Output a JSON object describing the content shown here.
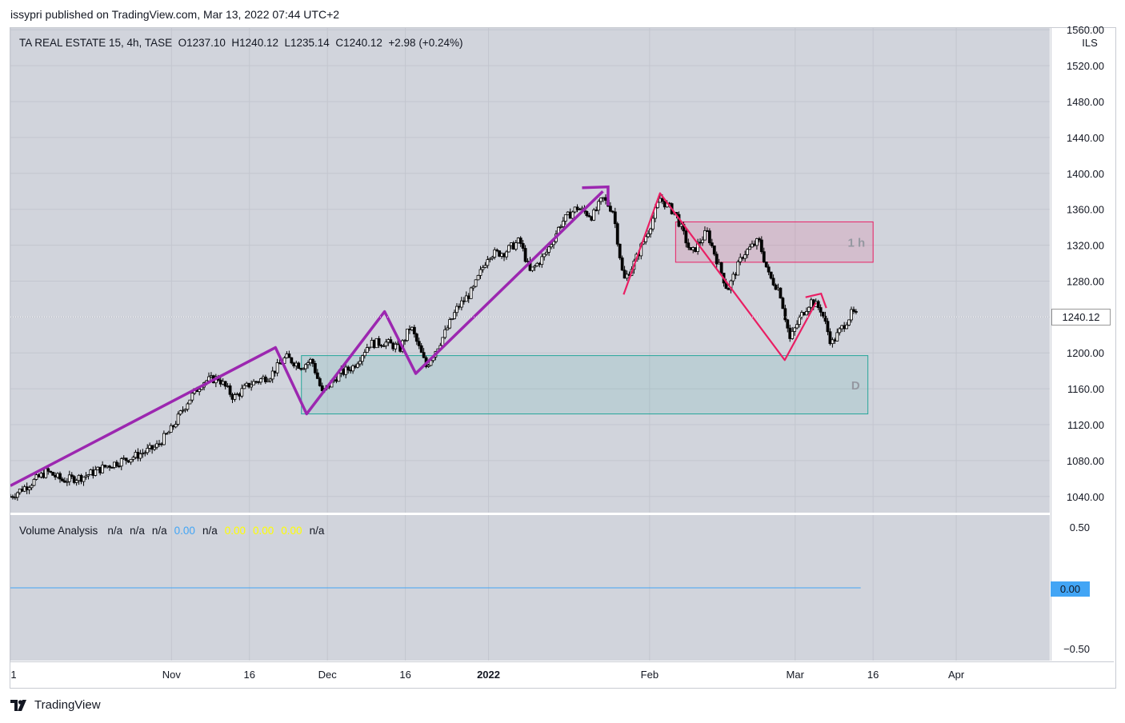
{
  "header": {
    "published": "issypri published on TradingView.com, Mar 13, 2022 07:44 UTC+2"
  },
  "legend": {
    "symbol": "TA REAL ESTATE 15, 4h, TASE",
    "open": "O1237.10",
    "high": "H1240.12",
    "low": "L1235.14",
    "close": "C1240.12",
    "change": "+2.98 (+0.24%)"
  },
  "volume_legend": {
    "title": "Volume Analysis",
    "values": [
      {
        "text": "n/a",
        "color": "#131722"
      },
      {
        "text": "n/a",
        "color": "#131722"
      },
      {
        "text": "n/a",
        "color": "#131722"
      },
      {
        "text": "0.00",
        "color": "#42a5f5"
      },
      {
        "text": "n/a",
        "color": "#131722"
      },
      {
        "text": "0.00",
        "color": "#ffff00"
      },
      {
        "text": "0.00",
        "color": "#ffff00"
      },
      {
        "text": "0.00",
        "color": "#ffff00"
      },
      {
        "text": "n/a",
        "color": "#131722"
      }
    ]
  },
  "last_price_label": "1240.12",
  "volume_value_label": "0.00",
  "footer": {
    "brand": "TradingView"
  },
  "colors": {
    "purple": "#9c27b0",
    "pink": "#e91e63",
    "teal": "#26a69a",
    "pane": "#d1d4dc",
    "blue": "#42a5f5"
  },
  "chart_data": {
    "type": "candlestick",
    "title": "TA REAL ESTATE 15, 4h, TASE",
    "currency": "ILS",
    "ylim": [
      1022,
      1562
    ],
    "y_ticks": [
      1040,
      1080,
      1120,
      1160,
      1200,
      1240,
      1280,
      1320,
      1360,
      1400,
      1440,
      1480,
      1520,
      1560
    ],
    "y_tick_labels": [
      "1040.00",
      "1080.00",
      "1120.00",
      "1160.00",
      "1200.00",
      "1240.00",
      "1280.00",
      "1320.00",
      "1360.00",
      "1400.00",
      "1440.00",
      "1480.00",
      "1520.00",
      "1560.00"
    ],
    "x_range": [
      "2021-10-01",
      "2022-04-19"
    ],
    "x_ticks": [
      {
        "date": "2021-10-01",
        "label": "1",
        "bold": false
      },
      {
        "date": "2021-11-01",
        "label": "Nov",
        "bold": false
      },
      {
        "date": "2021-11-16",
        "label": "16",
        "bold": false
      },
      {
        "date": "2021-12-01",
        "label": "Dec",
        "bold": false
      },
      {
        "date": "2021-12-16",
        "label": "16",
        "bold": false
      },
      {
        "date": "2022-01-01",
        "label": "2022",
        "bold": true
      },
      {
        "date": "2022-02-01",
        "label": "Feb",
        "bold": false
      },
      {
        "date": "2022-03-01",
        "label": "Mar",
        "bold": false
      },
      {
        "date": "2022-03-16",
        "label": "16",
        "bold": false
      },
      {
        "date": "2022-04-01",
        "label": "Apr",
        "bold": false
      }
    ],
    "price_path": [
      [
        "2021-10-01",
        1040
      ],
      [
        "2021-10-05",
        1055
      ],
      [
        "2021-10-08",
        1068
      ],
      [
        "2021-10-11",
        1058
      ],
      [
        "2021-10-15",
        1062
      ],
      [
        "2021-10-20",
        1075
      ],
      [
        "2021-10-25",
        1085
      ],
      [
        "2021-10-29",
        1095
      ],
      [
        "2021-11-01",
        1115
      ],
      [
        "2021-11-04",
        1145
      ],
      [
        "2021-11-07",
        1168
      ],
      [
        "2021-11-10",
        1172
      ],
      [
        "2021-11-13",
        1150
      ],
      [
        "2021-11-16",
        1165
      ],
      [
        "2021-11-20",
        1175
      ],
      [
        "2021-11-23",
        1195
      ],
      [
        "2021-11-26",
        1185
      ],
      [
        "2021-11-28",
        1192
      ],
      [
        "2021-11-30",
        1155
      ],
      [
        "2021-12-03",
        1175
      ],
      [
        "2021-12-06",
        1185
      ],
      [
        "2021-12-09",
        1210
      ],
      [
        "2021-12-12",
        1212
      ],
      [
        "2021-12-15",
        1205
      ],
      [
        "2021-12-17",
        1230
      ],
      [
        "2021-12-20",
        1185
      ],
      [
        "2021-12-23",
        1215
      ],
      [
        "2021-12-26",
        1250
      ],
      [
        "2021-12-29",
        1270
      ],
      [
        "2022-01-01",
        1310
      ],
      [
        "2022-01-04",
        1312
      ],
      [
        "2022-01-07",
        1325
      ],
      [
        "2022-01-09",
        1290
      ],
      [
        "2022-01-12",
        1310
      ],
      [
        "2022-01-15",
        1345
      ],
      [
        "2022-01-18",
        1362
      ],
      [
        "2022-01-21",
        1352
      ],
      [
        "2022-01-23",
        1372
      ],
      [
        "2022-01-25",
        1358
      ],
      [
        "2022-01-27",
        1280
      ],
      [
        "2022-01-29",
        1300
      ],
      [
        "2022-02-01",
        1340
      ],
      [
        "2022-02-03",
        1372
      ],
      [
        "2022-02-06",
        1355
      ],
      [
        "2022-02-09",
        1310
      ],
      [
        "2022-02-12",
        1335
      ],
      [
        "2022-02-16",
        1270
      ],
      [
        "2022-02-19",
        1310
      ],
      [
        "2022-02-22",
        1325
      ],
      [
        "2022-02-24",
        1285
      ],
      [
        "2022-02-26",
        1270
      ],
      [
        "2022-02-28",
        1215
      ],
      [
        "2022-03-02",
        1240
      ],
      [
        "2022-03-04",
        1258
      ],
      [
        "2022-03-06",
        1248
      ],
      [
        "2022-03-08",
        1210
      ],
      [
        "2022-03-10",
        1228
      ],
      [
        "2022-03-12",
        1245
      ],
      [
        "2022-03-13",
        1240.12
      ]
    ],
    "drawings": [
      {
        "name": "purple-trend",
        "color": "#9c27b0",
        "points": [
          [
            "2021-10-01",
            1052
          ],
          [
            "2021-11-21",
            1206
          ],
          [
            "2021-11-27",
            1132
          ],
          [
            "2021-12-12",
            1246
          ],
          [
            "2021-12-18",
            1177
          ],
          [
            "2022-01-23",
            1380
          ]
        ],
        "arrow": [
          [
            "2022-01-19",
            1384
          ],
          [
            "2022-01-24",
            1385
          ],
          [
            "2022-01-24",
            1364
          ]
        ]
      },
      {
        "name": "pink-zigzag",
        "color": "#e91e63",
        "points": [
          [
            "2022-01-27",
            1265
          ],
          [
            "2022-02-03",
            1378
          ],
          [
            "2022-02-27",
            1192
          ],
          [
            "2022-03-05",
            1256
          ]
        ],
        "arrow": [
          [
            "2022-03-03",
            1262
          ],
          [
            "2022-03-06",
            1266
          ],
          [
            "2022-03-07",
            1250
          ]
        ]
      }
    ],
    "zones": [
      {
        "label": "1 h",
        "from_date": "2022-02-06",
        "to_date": "2022-03-16",
        "top": 1346,
        "bottom": 1301,
        "color": "#e91e63"
      },
      {
        "label": "D",
        "from_date": "2021-11-26",
        "to_date": "2022-03-15",
        "top": 1197,
        "bottom": 1132,
        "color": "#26a69a"
      }
    ],
    "volume_pane": {
      "ylim": [
        -0.6,
        0.6
      ],
      "y_ticks": [
        0.5,
        0.0,
        -0.5
      ],
      "y_tick_labels": [
        "0.50",
        "0.00",
        "−0.50"
      ],
      "series": [
        {
          "name": "Volume Analysis",
          "value": 0.0,
          "color": "#42a5f5",
          "to_date": "2022-03-13"
        }
      ]
    }
  }
}
